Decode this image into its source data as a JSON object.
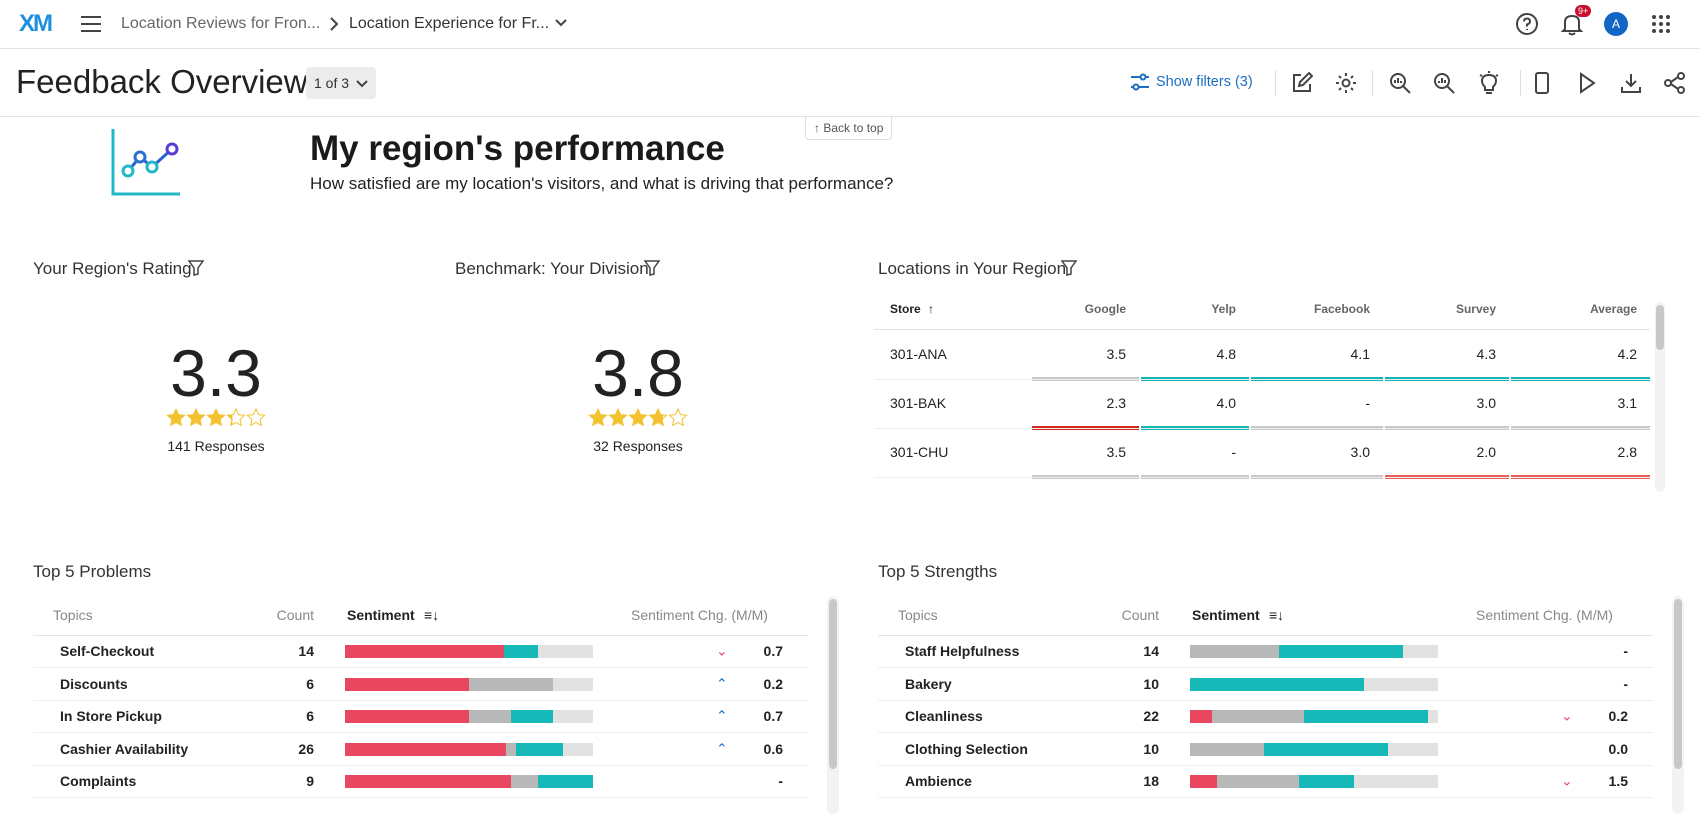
{
  "nav": {
    "logo": "XM",
    "breadcrumb": [
      "Location Reviews for Fron...",
      "Location Experience for Fr..."
    ],
    "notification_badge": "9+",
    "avatar": "A"
  },
  "toolbar": {
    "title": "Feedback Overview",
    "page_selector": "1 of 3",
    "show_filters": "Show filters (3)"
  },
  "back_to_top": "Back to top",
  "header": {
    "title": "My region's performance",
    "subtitle": "How satisfied are my location's visitors, and what is driving that performance?"
  },
  "rating": {
    "title": "Your Region's Rating",
    "value": 3.3,
    "responses": "141 Responses"
  },
  "benchmark": {
    "title": "Benchmark: Your Division",
    "value": 3.8,
    "responses": "32 Responses"
  },
  "locations": {
    "title": "Locations in Your Region",
    "columns": [
      "Store",
      "Google",
      "Yelp",
      "Facebook",
      "Survey",
      "Average"
    ],
    "rows": [
      {
        "cells": [
          "301-ANA",
          "3.5",
          "4.8",
          "4.1",
          "4.3",
          "4.2"
        ],
        "colors": [
          null,
          "#c8c8c8",
          "#12b5b5",
          "#12b5b5",
          "#12b5b5",
          "#12b5b5"
        ]
      },
      {
        "cells": [
          "301-BAK",
          "2.3",
          "4.0",
          "-",
          "3.0",
          "3.1"
        ],
        "colors": [
          null,
          "#d2281e",
          "#12b5b5",
          "#c8c8c8",
          "#c8c8c8",
          "#c8c8c8"
        ]
      },
      {
        "cells": [
          "301-CHU",
          "3.5",
          "-",
          "3.0",
          "2.0",
          "2.8"
        ],
        "colors": [
          null,
          "#c8c8c8",
          "#c8c8c8",
          "#c8c8c8",
          "#e8605a",
          "#e8605a"
        ]
      }
    ]
  },
  "problems": {
    "title": "Top 5 Problems",
    "columns": [
      "Topics",
      "Count",
      "Sentiment",
      "Sentiment Chg. (M/M)"
    ],
    "rows": [
      {
        "topic": "Self-Checkout",
        "count": 14,
        "sentiment": [
          64,
          0,
          14
        ],
        "trend": "down",
        "change": "0.7"
      },
      {
        "topic": "Discounts",
        "count": 6,
        "sentiment": [
          50,
          34,
          0
        ],
        "trend": "up",
        "change": "0.2"
      },
      {
        "topic": "In Store Pickup",
        "count": 6,
        "sentiment": [
          50,
          17,
          17
        ],
        "trend": "up",
        "change": "0.7"
      },
      {
        "topic": "Cashier Availability",
        "count": 26,
        "sentiment": [
          65,
          4,
          19
        ],
        "trend": "up",
        "change": "0.6"
      },
      {
        "topic": "Complaints",
        "count": 9,
        "sentiment": [
          67,
          11,
          22
        ],
        "trend": null,
        "change": "-"
      }
    ]
  },
  "strengths": {
    "title": "Top 5 Strengths",
    "columns": [
      "Topics",
      "Count",
      "Sentiment",
      "Sentiment Chg. (M/M)"
    ],
    "rows": [
      {
        "topic": "Staff Helpfulness",
        "count": 14,
        "sentiment": [
          0,
          36,
          50
        ],
        "trend": null,
        "change": "-"
      },
      {
        "topic": "Bakery",
        "count": 10,
        "sentiment": [
          0,
          0,
          70
        ],
        "trend": null,
        "change": "-"
      },
      {
        "topic": "Cleanliness",
        "count": 22,
        "sentiment": [
          9,
          37,
          50
        ],
        "trend": "down",
        "change": "0.2"
      },
      {
        "topic": "Clothing Selection",
        "count": 10,
        "sentiment": [
          0,
          30,
          50
        ],
        "trend": null,
        "change": "0.0"
      },
      {
        "topic": "Ambience",
        "count": 18,
        "sentiment": [
          11,
          33,
          22
        ],
        "trend": "down",
        "change": "1.5"
      }
    ]
  }
}
